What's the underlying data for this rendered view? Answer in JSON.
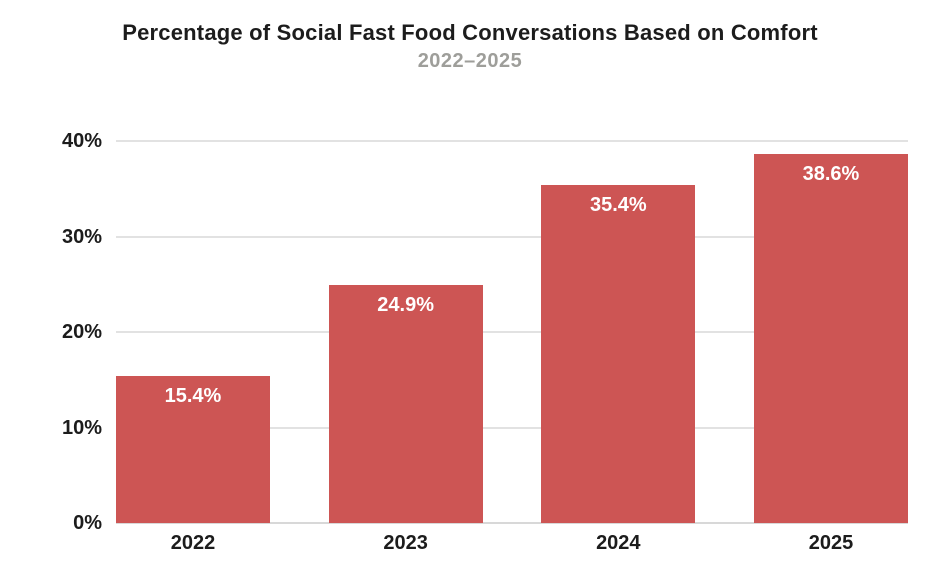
{
  "chart_data": {
    "type": "bar",
    "title": "Percentage of Social Fast Food Conversations Based on Comfort",
    "subtitle": "2022–2025",
    "categories": [
      "2022",
      "2023",
      "2024",
      "2025"
    ],
    "values": [
      15.4,
      24.9,
      35.4,
      38.6
    ],
    "value_labels": [
      "15.4%",
      "24.9%",
      "35.4%",
      "38.6%"
    ],
    "yticks": [
      {
        "value": 0,
        "label": "0%"
      },
      {
        "value": 10,
        "label": "10%"
      },
      {
        "value": 20,
        "label": "20%"
      },
      {
        "value": 30,
        "label": "30%"
      },
      {
        "value": 40,
        "label": "40%"
      }
    ],
    "ylim": [
      0,
      40
    ],
    "xlabel": "",
    "ylabel": "",
    "grid": "horizontal",
    "legend": "none",
    "colors": {
      "bar": "#cd5554",
      "bar_label": "#ffffff",
      "title": "#1c1c1c",
      "subtitle": "#9e9e9a",
      "tick_label": "#1c1c1c",
      "gridline": "#e2e2e2",
      "baseline": "#d8d8d8",
      "background": "#ffffff"
    }
  }
}
